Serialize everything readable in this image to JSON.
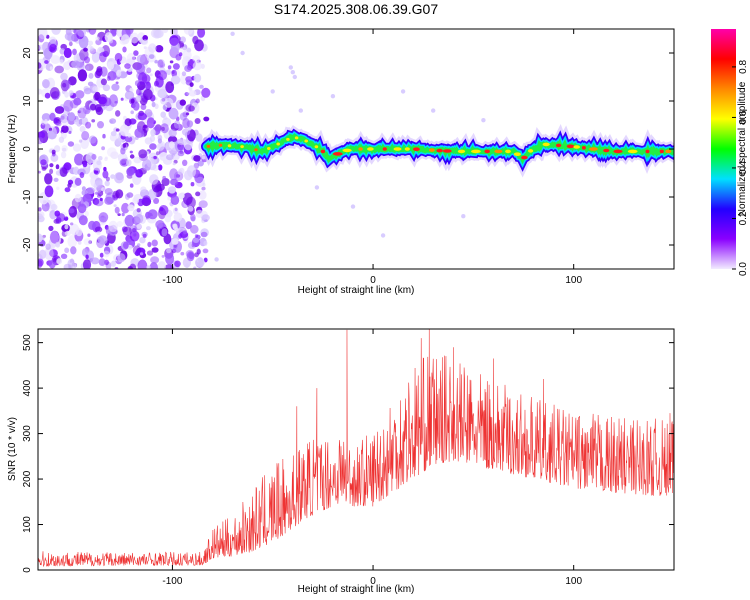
{
  "title": "S174.2025.308.06.39.G07",
  "chart_data": [
    {
      "type": "heatmap",
      "name": "spectrogram",
      "xlabel": "Height of straight line (km)",
      "ylabel": "Frequency (Hz)",
      "xlim": [
        -167,
        150
      ],
      "ylim": [
        -25,
        25
      ],
      "x_ticks": [
        -100,
        0,
        100
      ],
      "y_ticks": [
        -20,
        -10,
        0,
        10,
        20
      ],
      "x_tick_labels": [
        "-100",
        "0",
        "100"
      ],
      "y_tick_labels": [
        "-20",
        "-10",
        "0",
        "10",
        "20"
      ],
      "noise_region_x": [
        -167,
        -83
      ],
      "ridge": {
        "x": [
          -83,
          -75,
          -65,
          -55,
          -50,
          -45,
          -40,
          -35,
          -30,
          -25,
          -22,
          -20,
          -15,
          -10,
          0,
          20,
          40,
          60,
          70,
          75,
          78,
          85,
          100,
          120,
          140,
          150
        ],
        "freq": [
          0.5,
          0.8,
          0.5,
          -0.5,
          0.5,
          1.5,
          2.5,
          2.0,
          1.0,
          -0.5,
          -2.0,
          -1.5,
          -0.5,
          0.0,
          0.0,
          0.0,
          -0.5,
          -0.5,
          -0.5,
          -2.0,
          -0.5,
          1.0,
          0.5,
          -0.5,
          -0.5,
          -0.5
        ]
      },
      "stray_blobs": [
        {
          "x": -41,
          "y": 17
        },
        {
          "x": -39,
          "y": 15
        },
        {
          "x": -40,
          "y": 16
        },
        {
          "x": -36,
          "y": 8
        },
        {
          "x": -65,
          "y": 20
        },
        {
          "x": -50,
          "y": 12
        },
        {
          "x": -20,
          "y": 11
        },
        {
          "x": -28,
          "y": -8
        },
        {
          "x": -10,
          "y": -12
        },
        {
          "x": 30,
          "y": 8
        },
        {
          "x": 45,
          "y": -14
        },
        {
          "x": 55,
          "y": 6
        },
        {
          "x": -78,
          "y": -23
        },
        {
          "x": -70,
          "y": 24
        },
        {
          "x": 15,
          "y": 12
        },
        {
          "x": 5,
          "y": -18
        }
      ],
      "colorbar": {
        "label": "Normalized spectral amplitude",
        "range": [
          0.0,
          0.95
        ],
        "ticks": [
          0.0,
          0.2,
          0.4,
          0.6,
          0.8
        ],
        "tick_labels": [
          "0.0",
          "0.2",
          "0.4",
          "0.6",
          "0.8"
        ],
        "colors": [
          "#f2ecff",
          "#8a00ff",
          "#2200ff",
          "#00e0ff",
          "#00ff00",
          "#ffff00",
          "#ff8800",
          "#ff0000",
          "#ff00aa"
        ]
      }
    },
    {
      "type": "line",
      "name": "snr",
      "xlabel": "Height of straight line (km)",
      "ylabel": "SNR (10 * v/v)",
      "xlim": [
        -167,
        150
      ],
      "ylim": [
        0,
        530
      ],
      "x_ticks": [
        -100,
        0,
        100
      ],
      "y_ticks": [
        0,
        100,
        200,
        300,
        400,
        500
      ],
      "x_tick_labels": [
        "-100",
        "0",
        "100"
      ],
      "y_tick_labels": [
        "0",
        "100",
        "200",
        "300",
        "400",
        "500"
      ],
      "color": "#ee3333",
      "envelope": {
        "x": [
          -167,
          -120,
          -85,
          -80,
          -70,
          -60,
          -50,
          -40,
          -35,
          -30,
          -20,
          -15,
          -10,
          0,
          10,
          20,
          30,
          40,
          50,
          60,
          80,
          100,
          120,
          150
        ],
        "base": [
          8,
          10,
          10,
          25,
          30,
          40,
          60,
          90,
          110,
          120,
          140,
          150,
          140,
          140,
          170,
          200,
          230,
          240,
          230,
          220,
          200,
          180,
          170,
          160
        ],
        "peak": [
          42,
          40,
          40,
          95,
          120,
          180,
          230,
          260,
          280,
          300,
          300,
          320,
          280,
          310,
          400,
          460,
          480,
          470,
          440,
          420,
          380,
          350,
          340,
          330
        ]
      },
      "spikes": [
        {
          "x": -13,
          "y": 528
        },
        {
          "x": -38,
          "y": 360
        },
        {
          "x": -28,
          "y": 400
        },
        {
          "x": 28,
          "y": 530
        },
        {
          "x": 24,
          "y": 510
        },
        {
          "x": 40,
          "y": 490
        },
        {
          "x": 60,
          "y": 465
        },
        {
          "x": 85,
          "y": 420
        },
        {
          "x": 148,
          "y": 345
        }
      ]
    }
  ]
}
